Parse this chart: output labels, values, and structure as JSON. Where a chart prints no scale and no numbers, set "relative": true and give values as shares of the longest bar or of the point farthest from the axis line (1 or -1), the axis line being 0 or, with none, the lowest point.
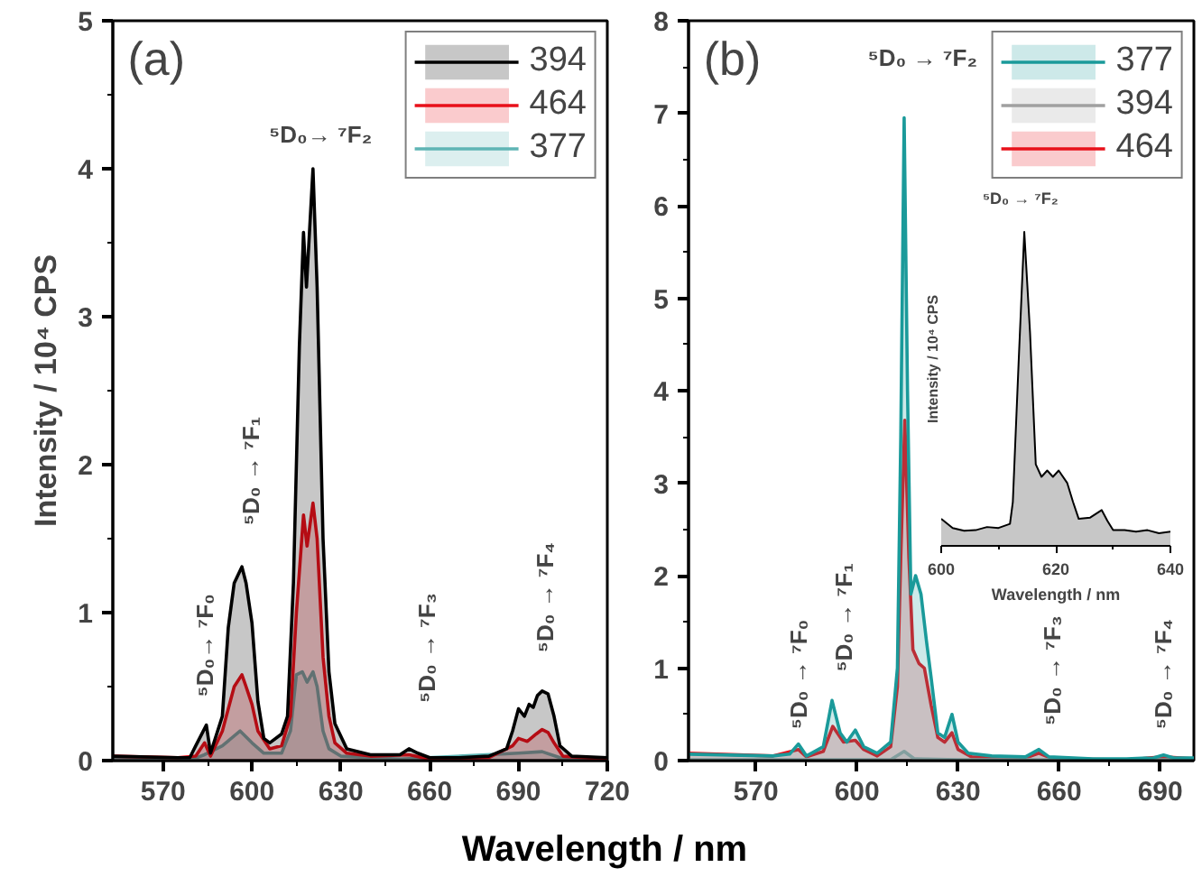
{
  "chart_data": [
    {
      "type": "area",
      "xlabel": "Wavelength / nm",
      "ylabel": "Intensity / 10⁴ CPS",
      "xlim": [
        553,
        720
      ],
      "ylim": [
        0,
        5
      ],
      "xticks": [
        570,
        600,
        630,
        660,
        690,
        720
      ],
      "yticks": [
        0,
        1,
        2,
        3,
        4,
        5
      ],
      "legend": "top right",
      "annotations": [
        "(a)",
        "⁵D₀→ ⁷F₂",
        "⁵D₀→ ⁷F₀",
        "⁵D₀ → ⁷F₁",
        "⁵D₀ → ⁷F₃",
        "⁵D₀ → ⁷F₄"
      ],
      "series": [
        {
          "name": "394",
          "color": "#000000",
          "x": [
            553,
            575,
            579,
            581,
            584.6,
            586,
            590,
            592,
            594,
            596.6,
            598,
            600,
            602,
            604,
            606,
            610,
            612,
            614,
            616,
            617.4,
            618.4,
            620.6,
            622,
            624,
            626,
            628,
            632,
            640,
            650,
            653,
            656,
            660,
            670,
            680,
            686,
            688,
            690,
            692,
            693.6,
            695,
            696.4,
            698,
            700,
            702,
            704,
            708,
            720
          ],
          "values": [
            0.03,
            0.02,
            0.02,
            0.1,
            0.24,
            0.05,
            0.3,
            0.9,
            1.2,
            1.31,
            1.2,
            0.93,
            0.4,
            0.15,
            0.12,
            0.18,
            0.3,
            1.2,
            2.8,
            3.57,
            3.2,
            4.0,
            3.2,
            1.5,
            0.6,
            0.25,
            0.08,
            0.04,
            0.04,
            0.08,
            0.05,
            0.02,
            0.02,
            0.03,
            0.08,
            0.2,
            0.35,
            0.3,
            0.38,
            0.36,
            0.44,
            0.47,
            0.45,
            0.3,
            0.1,
            0.03,
            0.02
          ]
        },
        {
          "name": "464",
          "color": "#e8101a",
          "x": [
            553,
            575,
            581,
            584,
            586,
            590,
            594,
            596.6,
            598,
            600,
            602,
            606,
            610,
            613,
            615,
            617.4,
            618.6,
            620.6,
            622,
            624,
            626,
            628,
            632,
            640,
            653,
            660,
            680,
            688,
            690,
            693,
            696,
            698,
            700,
            702,
            705,
            720
          ],
          "values": [
            0.03,
            0.02,
            0.03,
            0.12,
            0.03,
            0.2,
            0.5,
            0.58,
            0.5,
            0.38,
            0.2,
            0.08,
            0.1,
            0.3,
            1.0,
            1.66,
            1.45,
            1.74,
            1.5,
            0.7,
            0.3,
            0.12,
            0.05,
            0.03,
            0.04,
            0.01,
            0.02,
            0.1,
            0.15,
            0.13,
            0.18,
            0.21,
            0.19,
            0.12,
            0.03,
            0.01
          ]
        },
        {
          "name": "377",
          "color": "#5fb5b5",
          "x": [
            553,
            580,
            584,
            590,
            596,
            600,
            604,
            610,
            613,
            615,
            617,
            618.6,
            620.6,
            622,
            624,
            626,
            630,
            650,
            690,
            698,
            704,
            720
          ],
          "values": [
            0.02,
            0.01,
            0.04,
            0.1,
            0.2,
            0.12,
            0.05,
            0.05,
            0.2,
            0.58,
            0.6,
            0.53,
            0.6,
            0.5,
            0.2,
            0.08,
            0.03,
            0.01,
            0.05,
            0.06,
            0.02,
            0.01
          ]
        }
      ]
    },
    {
      "type": "area",
      "xlim": [
        550,
        700
      ],
      "ylim": [
        0,
        8
      ],
      "xticks": [
        570,
        600,
        630,
        660,
        690
      ],
      "yticks": [
        0,
        1,
        2,
        3,
        4,
        5,
        6,
        7,
        8
      ],
      "legend": "top right",
      "annotations": [
        "(b)",
        "⁵D₀ → ⁷F₂",
        "⁵D₀ → ⁷F₀",
        "⁵D₀ → ⁷F₁",
        "⁵D₀ → ⁷F₃",
        "⁵D₀ → ⁷F₄"
      ],
      "series": [
        {
          "name": "377",
          "color": "#1a9a9a",
          "x": [
            550,
            575,
            580,
            582.6,
            585,
            590,
            592.6,
            595,
            597,
            599.5,
            602,
            606,
            610,
            612,
            613,
            614,
            615,
            616,
            617.4,
            619,
            620.6,
            622,
            624,
            626,
            628.2,
            630,
            633,
            640,
            650,
            654,
            657,
            670,
            680,
            688,
            691,
            694,
            700
          ],
          "values": [
            0.07,
            0.05,
            0.07,
            0.18,
            0.05,
            0.15,
            0.65,
            0.3,
            0.2,
            0.33,
            0.15,
            0.08,
            0.2,
            1.0,
            3.5,
            6.95,
            4.0,
            1.8,
            2.0,
            1.8,
            1.3,
            0.9,
            0.3,
            0.25,
            0.5,
            0.2,
            0.08,
            0.05,
            0.04,
            0.12,
            0.04,
            0.02,
            0.02,
            0.03,
            0.06,
            0.03,
            0.03
          ]
        },
        {
          "name": "394",
          "color": "#a0a0a0",
          "x": [
            550,
            610,
            614,
            617,
            630,
            700
          ],
          "values": [
            0.01,
            0.01,
            0.1,
            0.02,
            0.01,
            0.01
          ]
        },
        {
          "name": "464",
          "color": "#e8101a",
          "x": [
            550,
            575,
            582.6,
            585,
            590,
            592.8,
            596,
            599.5,
            602,
            606,
            610,
            612,
            613,
            614.2,
            615.4,
            616.6,
            618.4,
            620,
            622,
            624,
            626,
            628.2,
            630,
            634,
            650,
            654,
            658,
            680,
            691,
            700
          ],
          "values": [
            0.08,
            0.05,
            0.12,
            0.04,
            0.1,
            0.37,
            0.2,
            0.22,
            0.12,
            0.05,
            0.15,
            0.8,
            2.2,
            3.68,
            2.2,
            1.2,
            1.05,
            1.0,
            0.6,
            0.25,
            0.2,
            0.3,
            0.12,
            0.04,
            0.03,
            0.08,
            0.02,
            0.01,
            0.04,
            0.02
          ]
        }
      ]
    },
    {
      "type": "area",
      "relative": true,
      "xlabel": "Wavelength / nm",
      "ylabel": "Intensity / 10⁴ CPS",
      "xlim": [
        600,
        640
      ],
      "xticks": [
        600,
        620,
        640
      ],
      "tick_labels": "x",
      "annotations": [
        "⁵D₀ → ⁷F₂"
      ],
      "series": [
        {
          "color": "#000000",
          "x": [
            600,
            602,
            604,
            606,
            608,
            610,
            612,
            612.5,
            613.5,
            614.5,
            615.5,
            616.5,
            617.5,
            618.5,
            619.5,
            620.5,
            622,
            623,
            624,
            626,
            628,
            629,
            630,
            632,
            634,
            636,
            638,
            640
          ],
          "values": [
            0.086,
            0.057,
            0.048,
            0.05,
            0.06,
            0.057,
            0.07,
            0.14,
            0.58,
            1.0,
            0.68,
            0.26,
            0.22,
            0.24,
            0.22,
            0.24,
            0.2,
            0.14,
            0.086,
            0.09,
            0.114,
            0.08,
            0.05,
            0.05,
            0.045,
            0.05,
            0.04,
            0.045
          ]
        }
      ]
    }
  ]
}
